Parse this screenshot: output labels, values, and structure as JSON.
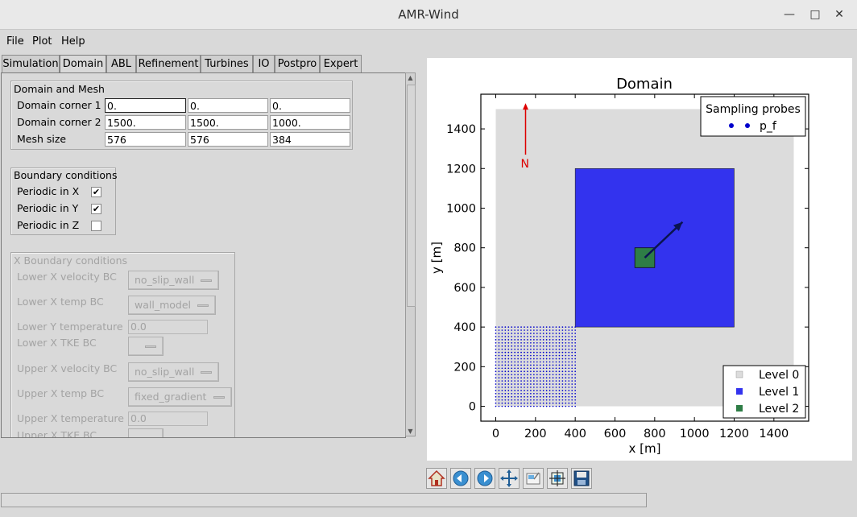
{
  "window": {
    "title": "AMR-Wind"
  },
  "menu": [
    "File",
    "Plot",
    "Help"
  ],
  "tabs": [
    "Simulation",
    "Domain",
    "ABL",
    "Refinement",
    "Turbines",
    "IO",
    "Postpro",
    "Expert"
  ],
  "active_tab": "Domain",
  "domain_mesh": {
    "title": "Domain and Mesh",
    "rows": [
      {
        "label": "Domain corner 1",
        "values": [
          "0.",
          "0.",
          "0."
        ]
      },
      {
        "label": "Domain corner 2",
        "values": [
          "1500.",
          "1500.",
          "1000."
        ]
      },
      {
        "label": "Mesh size",
        "values": [
          "576",
          "576",
          "384"
        ]
      }
    ]
  },
  "boundary": {
    "title": "Boundary conditions",
    "rows": [
      {
        "label": "Periodic in X",
        "checked": "✔"
      },
      {
        "label": "Periodic in Y",
        "checked": "✔"
      },
      {
        "label": "Periodic in Z",
        "checked": ""
      }
    ]
  },
  "xbc": {
    "title": "X Boundary conditions",
    "lower_velocity": {
      "label": "Lower X velocity BC",
      "value": "no_slip_wall"
    },
    "lower_temp": {
      "label": "Lower X temp BC",
      "value": "wall_model"
    },
    "lower_temperature": {
      "label": "Lower Y temperature",
      "value": "0.0"
    },
    "lower_tke": {
      "label": "Lower X TKE BC",
      "value": ""
    },
    "upper_velocity": {
      "label": "Upper X velocity BC",
      "value": "no_slip_wall"
    },
    "upper_temp": {
      "label": "Upper X temp BC",
      "value": "fixed_gradient"
    },
    "upper_temperature": {
      "label": "Upper X temperature",
      "value": "0.0"
    },
    "upper_tke": {
      "label": "Upper X TKE BC",
      "value": ""
    }
  },
  "plot": {
    "north_label": "N",
    "legend_probes": {
      "title": "Sampling probes",
      "entry": "p_f"
    },
    "legend_levels": [
      "Level 0",
      "Level 1",
      "Level 2"
    ]
  },
  "chart_data": {
    "type": "scatter",
    "title": "Domain",
    "xlabel": "x [m]",
    "ylabel": "y [m]",
    "xlim": [
      -75,
      1575
    ],
    "ylim": [
      -75,
      1575
    ],
    "xticks": [
      0,
      200,
      400,
      600,
      800,
      1000,
      1200,
      1400
    ],
    "yticks": [
      0,
      200,
      400,
      600,
      800,
      1000,
      1200,
      1400
    ],
    "level0": {
      "x": [
        0,
        1500
      ],
      "y": [
        0,
        1500
      ],
      "color": "#dcdcdc"
    },
    "level1": {
      "x": [
        400,
        1200
      ],
      "y": [
        400,
        1200
      ],
      "color": "#3333ee"
    },
    "level2": {
      "x": [
        700,
        800
      ],
      "y": [
        700,
        800
      ],
      "color": "#2e7d46"
    },
    "probes": {
      "x": [
        0,
        400
      ],
      "y": [
        0,
        400
      ],
      "spacing": 16,
      "color": "#0000cc"
    },
    "wind_arrow": {
      "from": [
        750,
        750
      ],
      "to": [
        940,
        930
      ]
    },
    "north_arrow": {
      "from": [
        150,
        1270
      ],
      "to": [
        150,
        1530
      ]
    }
  }
}
